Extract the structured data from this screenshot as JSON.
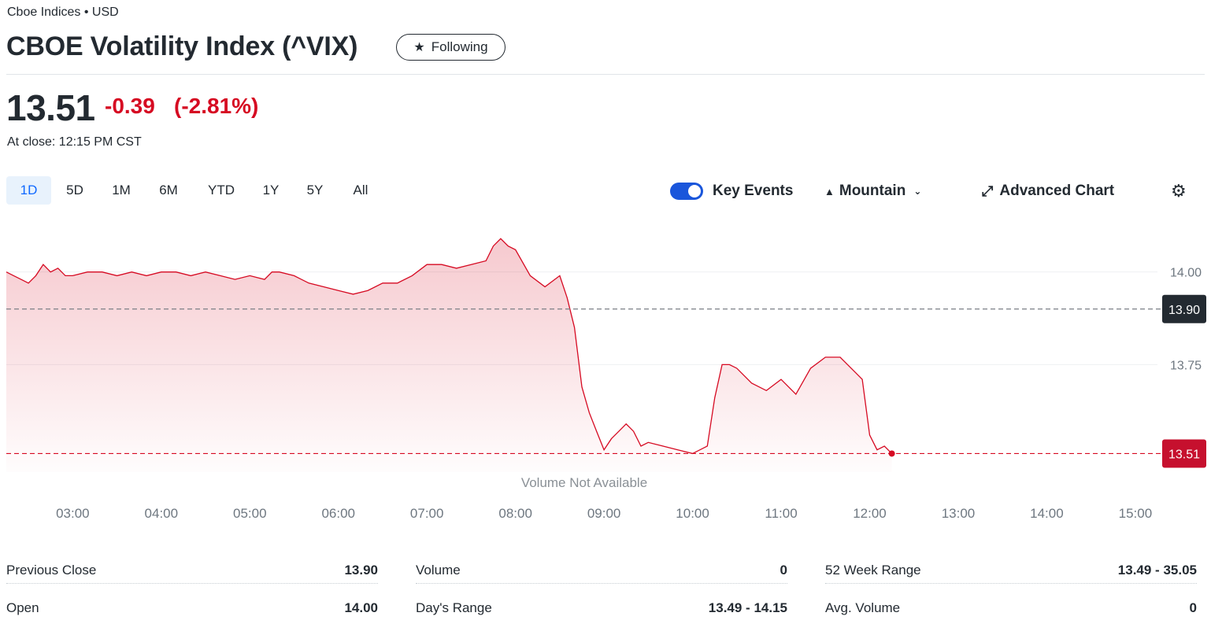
{
  "header": {
    "exchange": "Cboe Indices • USD",
    "title": "CBOE Volatility Index (^VIX)",
    "follow_label": "Following"
  },
  "quote": {
    "price": "13.51",
    "change": "-0.39",
    "change_pct": "(-2.81%)",
    "close_time": "At close: 12:15 PM CST"
  },
  "ranges": [
    {
      "label": "1D",
      "active": true
    },
    {
      "label": "5D",
      "active": false
    },
    {
      "label": "1M",
      "active": false
    },
    {
      "label": "6M",
      "active": false
    },
    {
      "label": "YTD",
      "active": false
    },
    {
      "label": "1Y",
      "active": false
    },
    {
      "label": "5Y",
      "active": false
    },
    {
      "label": "All",
      "active": false
    }
  ],
  "controls": {
    "key_events_label": "Key Events",
    "key_events_on": true,
    "chart_type_label": "Mountain",
    "advanced_label": "Advanced Chart"
  },
  "colors": {
    "line": "#d60a22",
    "accent_blue": "#0f69ff",
    "prev_close_badge": "#232a31",
    "current_badge": "#c6102e"
  },
  "chart_data": {
    "type": "area",
    "x_ticks": [
      "03:00",
      "04:00",
      "05:00",
      "06:00",
      "07:00",
      "08:00",
      "09:00",
      "10:00",
      "11:00",
      "12:00",
      "13:00",
      "14:00",
      "15:00"
    ],
    "y_ticks": [
      "14.00",
      "13.75"
    ],
    "ylim": [
      13.46,
      14.15
    ],
    "xlim": [
      "02:15",
      "15:15"
    ],
    "previous_close": {
      "value": 13.9,
      "label": "13.90"
    },
    "current": {
      "value": 13.51,
      "label": "13.51"
    },
    "note": "Volume Not Available",
    "series": [
      {
        "values": [
          [
            "02:15",
            14.0
          ],
          [
            "02:20",
            13.99
          ],
          [
            "02:25",
            13.98
          ],
          [
            "02:30",
            13.97
          ],
          [
            "02:35",
            13.99
          ],
          [
            "02:40",
            14.02
          ],
          [
            "02:45",
            14.0
          ],
          [
            "02:50",
            14.01
          ],
          [
            "02:55",
            13.99
          ],
          [
            "03:00",
            13.99
          ],
          [
            "03:10",
            14.0
          ],
          [
            "03:20",
            14.0
          ],
          [
            "03:30",
            13.99
          ],
          [
            "03:40",
            14.0
          ],
          [
            "03:50",
            13.99
          ],
          [
            "04:00",
            14.0
          ],
          [
            "04:10",
            14.0
          ],
          [
            "04:20",
            13.99
          ],
          [
            "04:30",
            14.0
          ],
          [
            "04:40",
            13.99
          ],
          [
            "04:50",
            13.98
          ],
          [
            "05:00",
            13.99
          ],
          [
            "05:10",
            13.98
          ],
          [
            "05:15",
            14.0
          ],
          [
            "05:20",
            14.0
          ],
          [
            "05:30",
            13.99
          ],
          [
            "05:40",
            13.97
          ],
          [
            "05:50",
            13.96
          ],
          [
            "06:00",
            13.95
          ],
          [
            "06:10",
            13.94
          ],
          [
            "06:20",
            13.95
          ],
          [
            "06:30",
            13.97
          ],
          [
            "06:40",
            13.97
          ],
          [
            "06:50",
            13.99
          ],
          [
            "07:00",
            14.02
          ],
          [
            "07:10",
            14.02
          ],
          [
            "07:20",
            14.01
          ],
          [
            "07:30",
            14.02
          ],
          [
            "07:40",
            14.03
          ],
          [
            "07:45",
            14.07
          ],
          [
            "07:50",
            14.09
          ],
          [
            "07:55",
            14.07
          ],
          [
            "08:00",
            14.06
          ],
          [
            "08:10",
            13.99
          ],
          [
            "08:20",
            13.96
          ],
          [
            "08:30",
            13.99
          ],
          [
            "08:35",
            13.93
          ],
          [
            "08:40",
            13.85
          ],
          [
            "08:45",
            13.69
          ],
          [
            "08:50",
            13.62
          ],
          [
            "08:55",
            13.57
          ],
          [
            "09:00",
            13.52
          ],
          [
            "09:05",
            13.55
          ],
          [
            "09:10",
            13.57
          ],
          [
            "09:15",
            13.59
          ],
          [
            "09:20",
            13.57
          ],
          [
            "09:25",
            13.53
          ],
          [
            "09:30",
            13.54
          ],
          [
            "09:40",
            13.53
          ],
          [
            "09:50",
            13.52
          ],
          [
            "10:00",
            13.51
          ],
          [
            "10:10",
            13.53
          ],
          [
            "10:15",
            13.66
          ],
          [
            "10:20",
            13.75
          ],
          [
            "10:25",
            13.75
          ],
          [
            "10:30",
            13.74
          ],
          [
            "10:40",
            13.7
          ],
          [
            "10:50",
            13.68
          ],
          [
            "11:00",
            13.71
          ],
          [
            "11:10",
            13.67
          ],
          [
            "11:20",
            13.74
          ],
          [
            "11:30",
            13.77
          ],
          [
            "11:40",
            13.77
          ],
          [
            "11:50",
            13.73
          ],
          [
            "11:55",
            13.71
          ],
          [
            "12:00",
            13.56
          ],
          [
            "12:05",
            13.52
          ],
          [
            "12:10",
            13.53
          ],
          [
            "12:15",
            13.51
          ]
        ]
      }
    ]
  },
  "stats": [
    {
      "label": "Previous Close",
      "value": "13.90"
    },
    {
      "label": "Open",
      "value": "14.00"
    },
    {
      "label": "Volume",
      "value": "0"
    },
    {
      "label": "Day's Range",
      "value": "13.49 - 14.15"
    },
    {
      "label": "52 Week Range",
      "value": "13.49 - 35.05"
    },
    {
      "label": "Avg. Volume",
      "value": "0"
    }
  ]
}
